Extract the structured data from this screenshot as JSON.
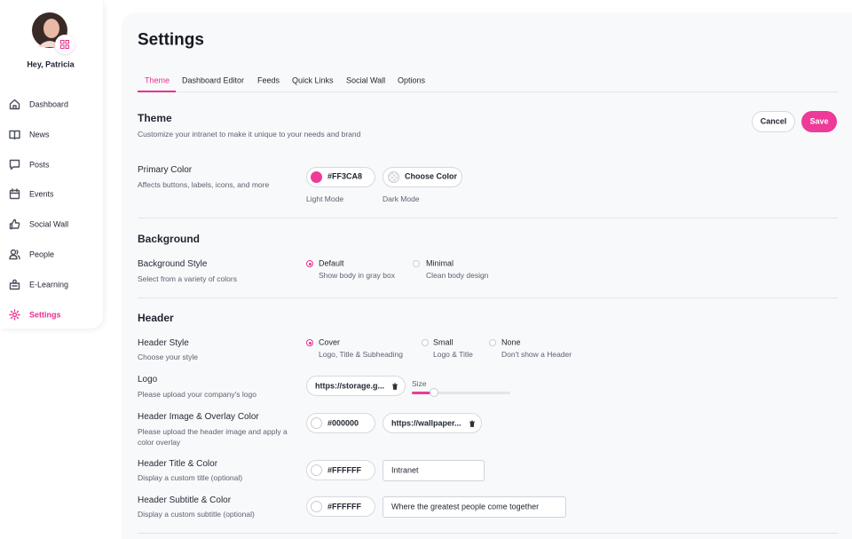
{
  "sidebar": {
    "greeting": "Hey, Patricia",
    "nav": [
      "Dashboard",
      "News",
      "Posts",
      "Events",
      "Social Wall",
      "People",
      "E-Learning",
      "Settings"
    ]
  },
  "header": {
    "title": "Settings"
  },
  "tabs": [
    "Theme",
    "Dashboard Editor",
    "Feeds",
    "Quick Links",
    "Social Wall",
    "Options"
  ],
  "theme": {
    "title": "Theme",
    "description": "Customize your intranet to make it unique to your needs and brand",
    "cancel": "Cancel",
    "save": "Save"
  },
  "primary_color": {
    "label": "Primary Color",
    "description": "Affects buttons, labels, icons, and more",
    "light_value": "#FF3CA8",
    "dark_button": "Choose Color",
    "light_caption": "Light Mode",
    "dark_caption": "Dark Mode"
  },
  "background": {
    "title": "Background",
    "style_label": "Background Style",
    "style_description": "Select from a variety of colors",
    "options": [
      {
        "label": "Default",
        "description": "Show body in gray box"
      },
      {
        "label": "Minimal",
        "description": "Clean body design"
      }
    ]
  },
  "header_section": {
    "title": "Header",
    "style_label": "Header Style",
    "style_description": "Choose your style",
    "style_options": [
      {
        "label": "Cover",
        "description": "Logo, Title & Subheading"
      },
      {
        "label": "Small",
        "description": "Logo & Title"
      },
      {
        "label": "None",
        "description": "Don't show a Header"
      }
    ],
    "logo_label": "Logo",
    "logo_description": "Please upload your company's logo",
    "logo_url": "https://storage.g...",
    "size_label": "Size",
    "image_label": "Header Image & Overlay Color",
    "image_description": "Please upload the header image and apply a color overlay",
    "overlay_color": "#000000",
    "image_url": "https://wallpaper...",
    "title_label": "Header Title & Color",
    "title_description": "Display a custom title (optional)",
    "title_color": "#FFFFFF",
    "title_value": "Intranet",
    "subtitle_label": "Header Subtitle & Color",
    "subtitle_description": "Display a custom subtitle (optional)",
    "subtitle_color": "#FFFFFF",
    "subtitle_value": "Where the greatest people come together"
  }
}
